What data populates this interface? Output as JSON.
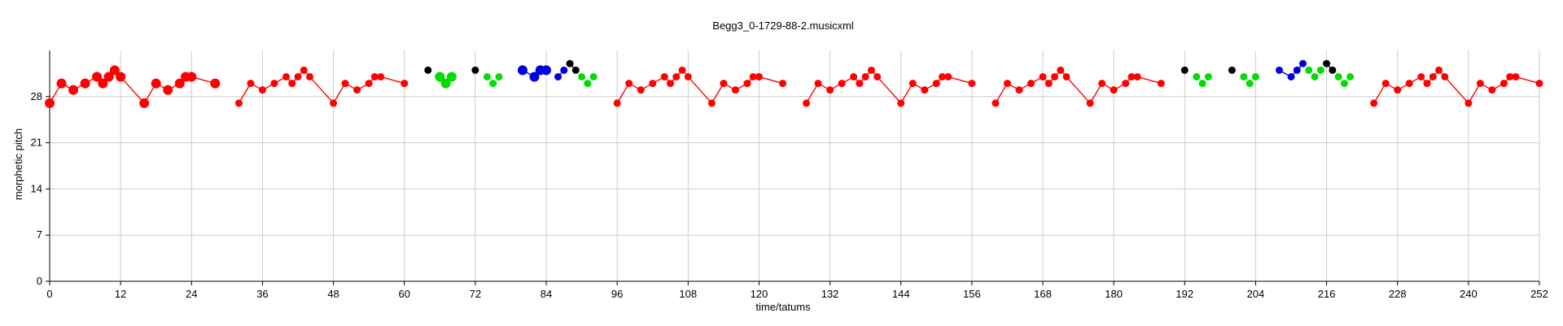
{
  "chart_data": {
    "type": "scatter",
    "title": "Begg3_0-1729-88-2.musicxml",
    "xlabel": "time/tatums",
    "ylabel": "morphetic pitch",
    "xlim": [
      0,
      252
    ],
    "ylim": [
      0,
      35
    ],
    "xticks": [
      0,
      12,
      24,
      36,
      48,
      60,
      72,
      84,
      96,
      108,
      120,
      132,
      144,
      156,
      168,
      180,
      192,
      204,
      216,
      228,
      240,
      252
    ],
    "yticks": [
      0,
      7,
      14,
      21,
      28
    ],
    "grid": true,
    "colors": {
      "red": "#ff0000",
      "green": "#00dd00",
      "blue": "#0000dd",
      "black": "#000000",
      "grid": "#cccccc"
    },
    "series": [
      {
        "color": "red",
        "connected": true,
        "size": "large",
        "points": [
          [
            0,
            27
          ],
          [
            2,
            30
          ],
          [
            4,
            29
          ],
          [
            6,
            30
          ],
          [
            8,
            31
          ],
          [
            9,
            30
          ],
          [
            10,
            31
          ],
          [
            11,
            32
          ],
          [
            12,
            31
          ],
          [
            16,
            27
          ],
          [
            18,
            30
          ],
          [
            20,
            29
          ],
          [
            22,
            30
          ],
          [
            23,
            31
          ],
          [
            24,
            31
          ],
          [
            28,
            30
          ]
        ]
      },
      {
        "color": "red",
        "connected": true,
        "size": "small",
        "points": [
          [
            32,
            27
          ],
          [
            34,
            30
          ],
          [
            36,
            29
          ],
          [
            38,
            30
          ],
          [
            40,
            31
          ],
          [
            41,
            30
          ],
          [
            42,
            31
          ],
          [
            43,
            32
          ],
          [
            44,
            31
          ],
          [
            48,
            27
          ],
          [
            50,
            30
          ],
          [
            52,
            29
          ],
          [
            54,
            30
          ],
          [
            55,
            31
          ],
          [
            56,
            31
          ],
          [
            60,
            30
          ]
        ]
      },
      {
        "color": "black",
        "connected": false,
        "size": "small",
        "points": [
          [
            64,
            32
          ],
          [
            72,
            32
          ]
        ]
      },
      {
        "color": "green",
        "connected": false,
        "size": "large",
        "points": [
          [
            66,
            31
          ],
          [
            67,
            30
          ],
          [
            68,
            31
          ]
        ]
      },
      {
        "color": "green",
        "connected": false,
        "size": "small",
        "points": [
          [
            74,
            31
          ],
          [
            75,
            30
          ],
          [
            76,
            31
          ]
        ]
      },
      {
        "color": "blue",
        "connected": true,
        "size": "large",
        "points": [
          [
            80,
            32
          ],
          [
            82,
            31
          ],
          [
            83,
            32
          ],
          [
            84,
            32
          ]
        ]
      },
      {
        "color": "blue",
        "connected": true,
        "size": "small",
        "points": [
          [
            86,
            31
          ],
          [
            87,
            32
          ]
        ]
      },
      {
        "color": "black",
        "connected": true,
        "size": "small",
        "points": [
          [
            88,
            33
          ],
          [
            89,
            32
          ]
        ]
      },
      {
        "color": "green",
        "connected": false,
        "size": "small",
        "points": [
          [
            90,
            31
          ],
          [
            91,
            30
          ],
          [
            92,
            31
          ]
        ]
      },
      {
        "color": "red",
        "connected": true,
        "size": "small",
        "points": [
          [
            96,
            27
          ],
          [
            98,
            30
          ],
          [
            100,
            29
          ],
          [
            102,
            30
          ],
          [
            104,
            31
          ],
          [
            105,
            30
          ],
          [
            106,
            31
          ],
          [
            107,
            32
          ],
          [
            108,
            31
          ],
          [
            112,
            27
          ],
          [
            114,
            30
          ],
          [
            116,
            29
          ],
          [
            118,
            30
          ],
          [
            119,
            31
          ],
          [
            120,
            31
          ],
          [
            124,
            30
          ]
        ]
      },
      {
        "color": "red",
        "connected": true,
        "size": "small",
        "points": [
          [
            128,
            27
          ],
          [
            130,
            30
          ],
          [
            132,
            29
          ],
          [
            134,
            30
          ],
          [
            136,
            31
          ],
          [
            137,
            30
          ],
          [
            138,
            31
          ],
          [
            139,
            32
          ],
          [
            140,
            31
          ],
          [
            144,
            27
          ],
          [
            146,
            30
          ],
          [
            148,
            29
          ],
          [
            150,
            30
          ],
          [
            151,
            31
          ],
          [
            152,
            31
          ],
          [
            156,
            30
          ]
        ]
      },
      {
        "color": "red",
        "connected": true,
        "size": "small",
        "points": [
          [
            160,
            27
          ],
          [
            162,
            30
          ],
          [
            164,
            29
          ],
          [
            166,
            30
          ],
          [
            168,
            31
          ],
          [
            169,
            30
          ],
          [
            170,
            31
          ],
          [
            171,
            32
          ],
          [
            172,
            31
          ],
          [
            176,
            27
          ],
          [
            178,
            30
          ],
          [
            180,
            29
          ],
          [
            182,
            30
          ],
          [
            183,
            31
          ],
          [
            184,
            31
          ],
          [
            188,
            30
          ]
        ]
      },
      {
        "color": "black",
        "connected": false,
        "size": "small",
        "points": [
          [
            192,
            32
          ],
          [
            200,
            32
          ]
        ]
      },
      {
        "color": "green",
        "connected": false,
        "size": "small",
        "points": [
          [
            194,
            31
          ],
          [
            195,
            30
          ],
          [
            196,
            31
          ],
          [
            202,
            31
          ],
          [
            203,
            30
          ],
          [
            204,
            31
          ]
        ]
      },
      {
        "color": "blue",
        "connected": true,
        "size": "small",
        "points": [
          [
            208,
            32
          ],
          [
            210,
            31
          ],
          [
            211,
            32
          ],
          [
            212,
            33
          ]
        ]
      },
      {
        "color": "green",
        "connected": false,
        "size": "small",
        "points": [
          [
            213,
            32
          ],
          [
            214,
            31
          ],
          [
            215,
            32
          ]
        ]
      },
      {
        "color": "black",
        "connected": true,
        "size": "small",
        "points": [
          [
            216,
            33
          ],
          [
            217,
            32
          ]
        ]
      },
      {
        "color": "green",
        "connected": false,
        "size": "small",
        "points": [
          [
            218,
            31
          ],
          [
            219,
            30
          ],
          [
            220,
            31
          ]
        ]
      },
      {
        "color": "red",
        "connected": true,
        "size": "small",
        "points": [
          [
            224,
            27
          ],
          [
            226,
            30
          ],
          [
            228,
            29
          ],
          [
            230,
            30
          ],
          [
            232,
            31
          ],
          [
            233,
            30
          ],
          [
            234,
            31
          ],
          [
            235,
            32
          ],
          [
            236,
            31
          ],
          [
            240,
            27
          ],
          [
            242,
            30
          ],
          [
            244,
            29
          ],
          [
            246,
            30
          ],
          [
            247,
            31
          ],
          [
            248,
            31
          ],
          [
            252,
            30
          ]
        ]
      }
    ]
  }
}
